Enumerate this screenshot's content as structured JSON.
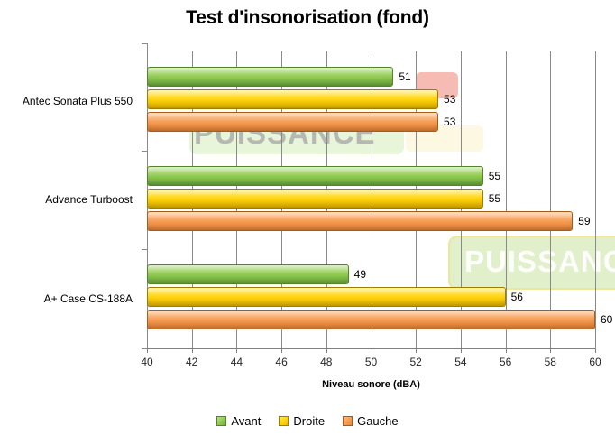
{
  "title": "Test d'insonorisation (fond)",
  "watermark": {
    "text": "PUISSANCE"
  },
  "colors": {
    "background": "#ffffff",
    "gridline": "#8a8a8a",
    "axis": "#808080",
    "label": "#000000"
  },
  "chart_data": {
    "type": "bar",
    "orientation": "horizontal",
    "title": "Test d'insonorisation (fond)",
    "xlabel": "Niveau sonore (dBA)",
    "xlim": [
      40,
      60
    ],
    "xticks": [
      40,
      42,
      44,
      46,
      48,
      50,
      52,
      54,
      56,
      58,
      60
    ],
    "grid": true,
    "legend_position": "bottom",
    "categories": [
      "Antec Sonata Plus 550",
      "Advance Turboost",
      "A+ Case CS-188A"
    ],
    "series": [
      {
        "name": "Avant",
        "values": [
          51,
          55,
          49
        ],
        "swatch": {
          "light": "#b8e08a",
          "main": "#8fc94f",
          "dark": "#6fae3e",
          "border": "#55822c"
        }
      },
      {
        "name": "Droite",
        "values": [
          53,
          55,
          56
        ],
        "swatch": {
          "light": "#ffe95e",
          "main": "#ffd20a",
          "dark": "#ecbb00",
          "border": "#a07c00"
        }
      },
      {
        "name": "Gauche",
        "values": [
          53,
          59,
          60
        ],
        "swatch": {
          "light": "#fbbd85",
          "main": "#f79b51",
          "dark": "#ec8536",
          "border": "#a85c19"
        }
      }
    ]
  }
}
